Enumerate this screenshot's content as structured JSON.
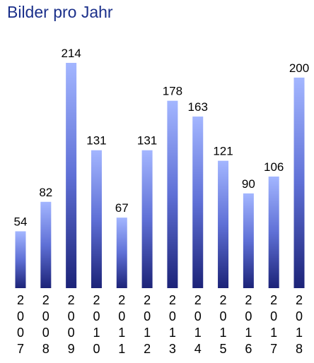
{
  "chart_data": {
    "type": "bar",
    "title": "Bilder pro Jahr",
    "categories": [
      "2007",
      "2008",
      "2009",
      "2010",
      "2011",
      "2012",
      "2013",
      "2014",
      "2015",
      "2016",
      "2017",
      "2018"
    ],
    "values": [
      54,
      82,
      214,
      131,
      67,
      131,
      178,
      163,
      121,
      90,
      106,
      200
    ]
  }
}
